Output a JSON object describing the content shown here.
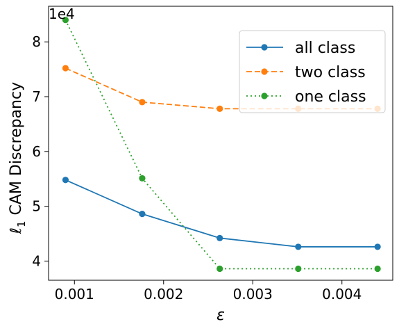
{
  "chart_data": {
    "type": "line",
    "x": [
      0.0009,
      0.00176,
      0.00263,
      0.00351,
      0.0044
    ],
    "series": [
      {
        "name": "all class",
        "values": [
          54800,
          48600,
          44200,
          42600,
          42600
        ],
        "color": "#1f77b4",
        "linestyle": "solid"
      },
      {
        "name": "two class",
        "values": [
          75200,
          69000,
          67800,
          67800,
          67800
        ],
        "color": "#ff7f0e",
        "linestyle": "dashed"
      },
      {
        "name": "one class",
        "values": [
          84000,
          55100,
          38600,
          38600,
          38600
        ],
        "color": "#2ca02c",
        "linestyle": "dotted"
      }
    ],
    "xlabel": "ε",
    "ylabel_symbol": "ℓ",
    "ylabel_subscript": "1",
    "ylabel_text": "CAM Discrepancy",
    "y_offset_text": "1e4",
    "xlim": [
      0.00071,
      0.00457
    ],
    "ylim": [
      36500,
      86500
    ],
    "xticks": [
      0.001,
      0.002,
      0.003,
      0.004
    ],
    "xtick_labels": [
      "0.001",
      "0.002",
      "0.003",
      "0.004"
    ],
    "yticks": [
      40000,
      50000,
      60000,
      70000,
      80000
    ],
    "ytick_labels": [
      "4",
      "5",
      "6",
      "7",
      "8"
    ],
    "legend_position": "upper right",
    "grid": false
  }
}
